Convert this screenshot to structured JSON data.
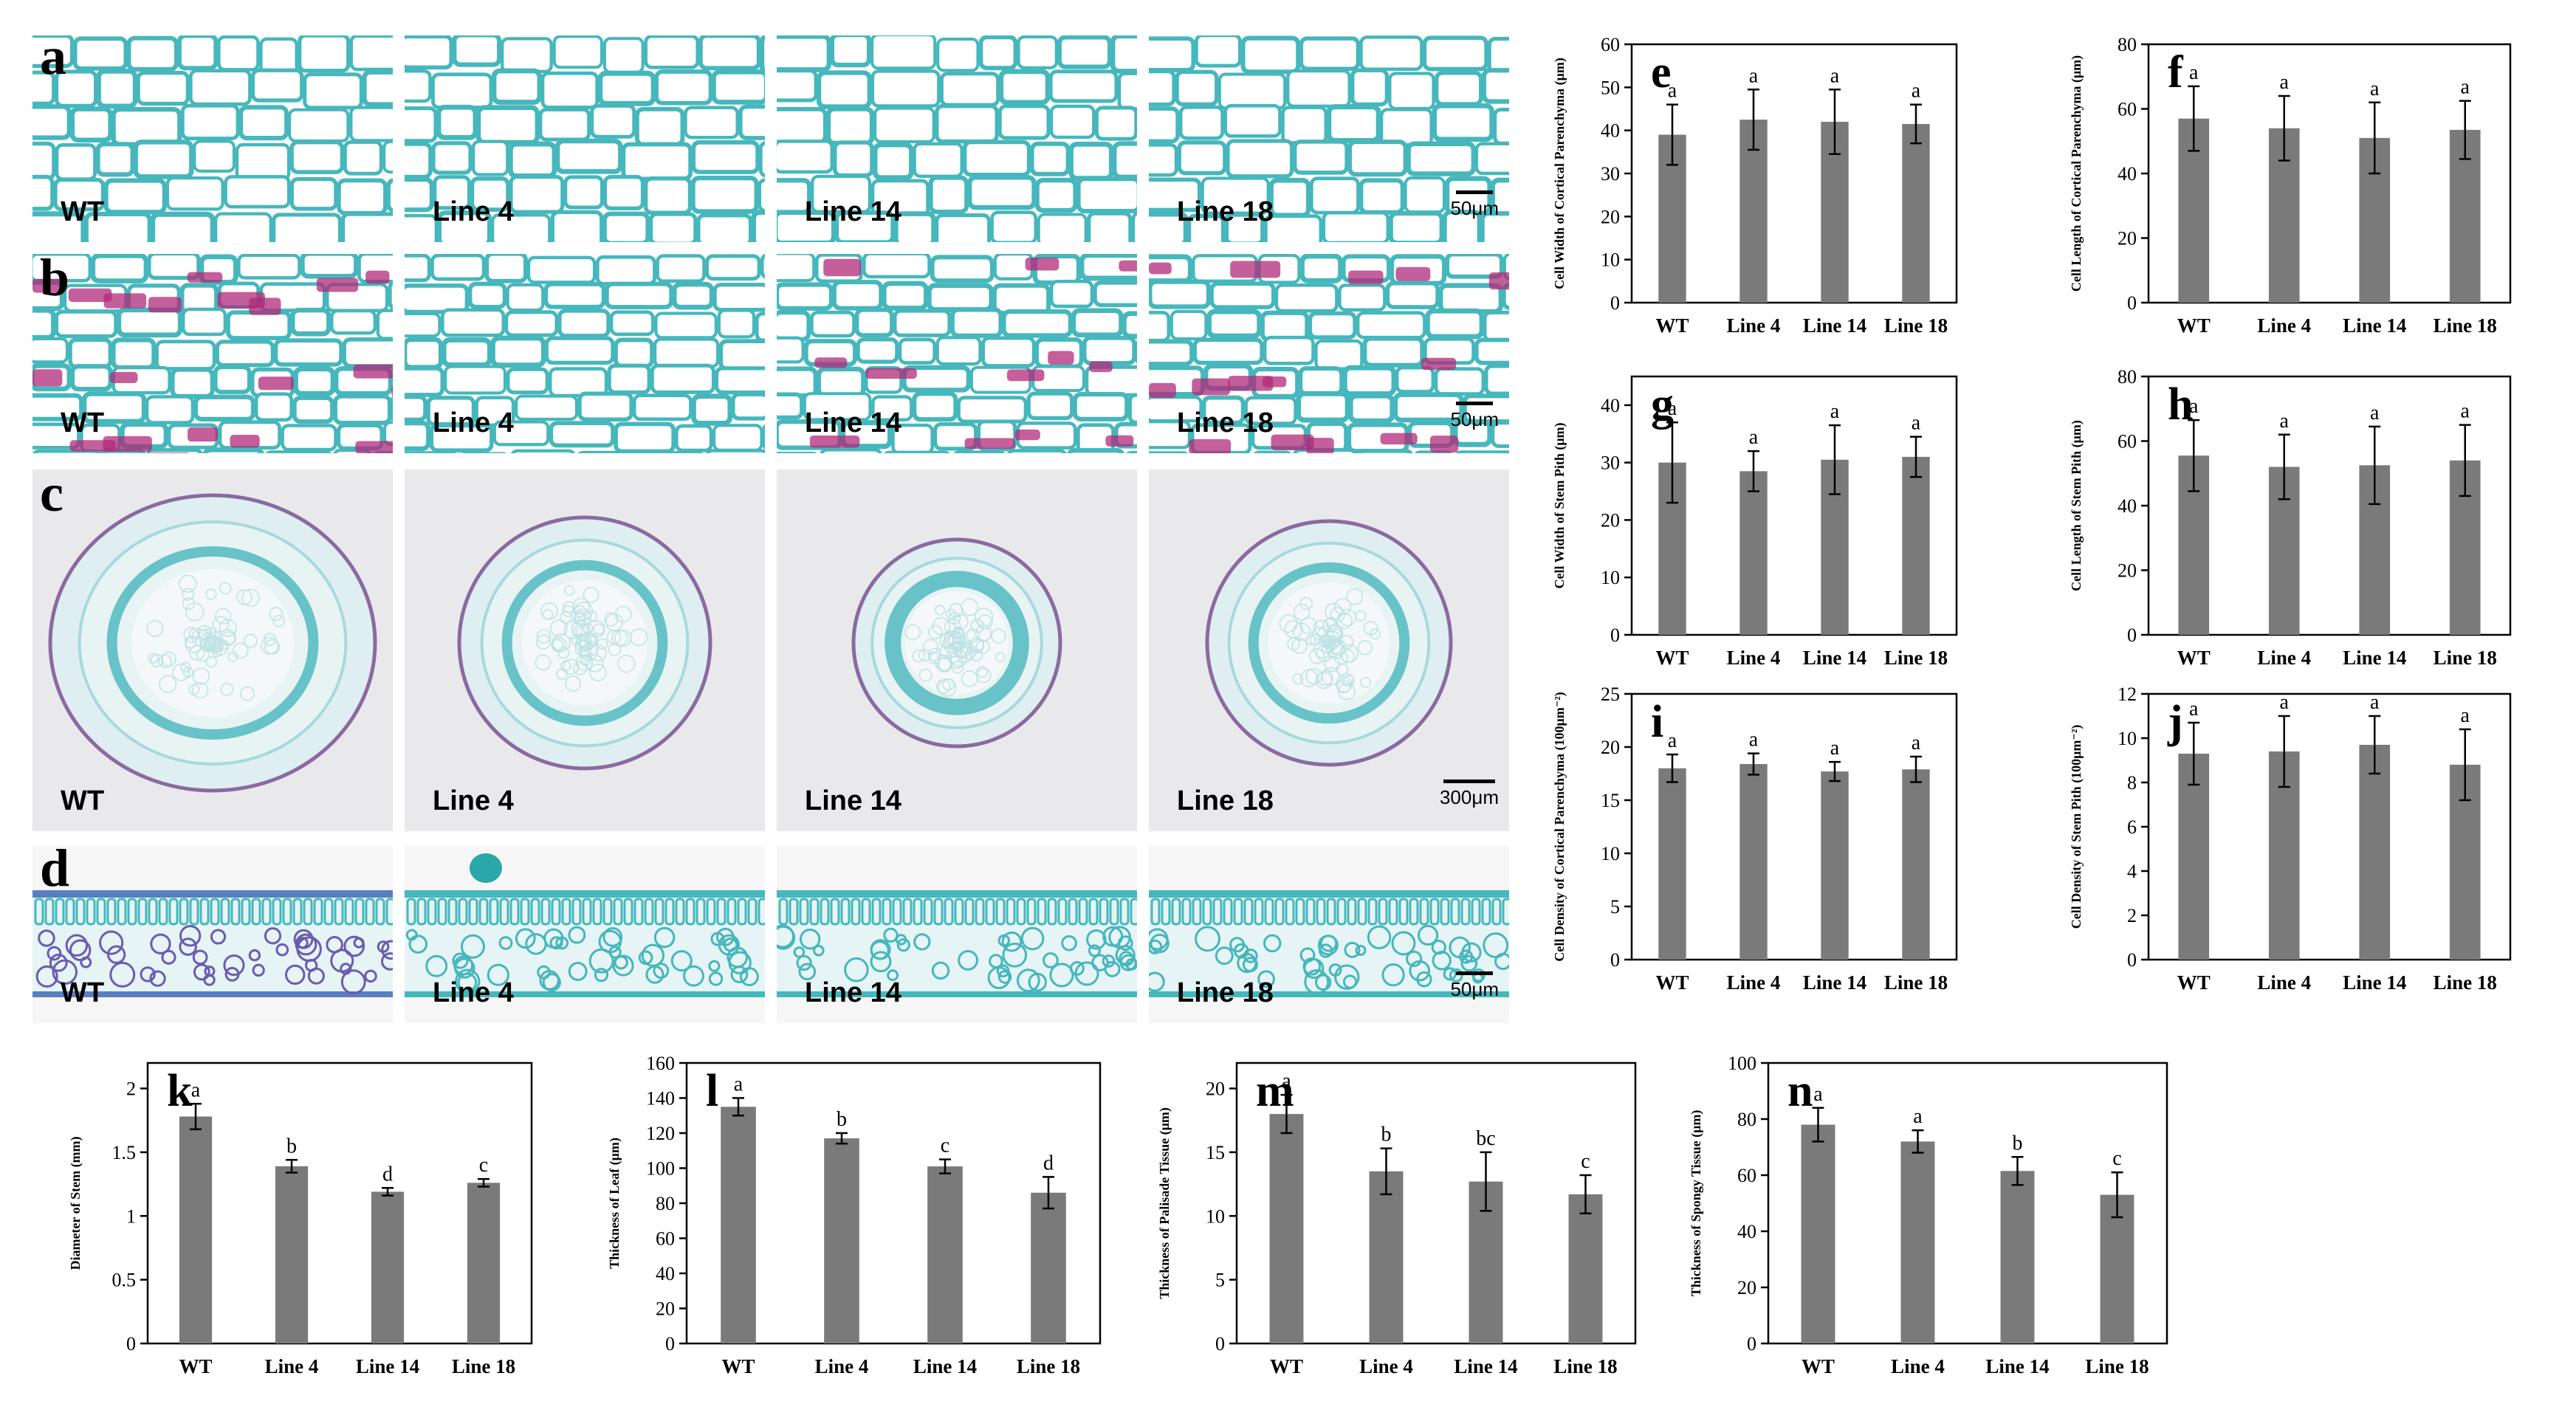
{
  "panel_labels": {
    "a": "a",
    "b": "b",
    "c": "c",
    "d": "d"
  },
  "micrographs": {
    "lines": [
      "WT",
      "Line 4",
      "Line 14",
      "Line 18"
    ],
    "rows": [
      {
        "id": "a",
        "type": "cells",
        "scale_label": "50μm"
      },
      {
        "id": "b",
        "type": "cells-red",
        "scale_label": "50μm"
      },
      {
        "id": "c",
        "type": "cross-section",
        "scale_label": "300μm"
      },
      {
        "id": "d",
        "type": "leaf",
        "scale_label": "50μm"
      }
    ],
    "colors": {
      "tissue": "#46b7bc",
      "stain": "#b02a7a",
      "cross_bg": "#e9e9ec",
      "cell_bg": "#fbfbfb"
    }
  },
  "chart_data": [
    {
      "id": "e",
      "type": "bar",
      "categories": [
        "WT",
        "Line 4",
        "Line 14",
        "Line 18"
      ],
      "values": [
        39,
        42.5,
        42,
        41.5
      ],
      "errors": [
        7,
        7,
        7.5,
        4.5
      ],
      "letters": [
        "a",
        "a",
        "a",
        "a"
      ],
      "ylabel": "Cell Width of Cortical Parenchyma (μm)",
      "ylim": [
        0,
        60
      ],
      "yticks": [
        0,
        10,
        20,
        30,
        40,
        50,
        60
      ]
    },
    {
      "id": "f",
      "type": "bar",
      "categories": [
        "WT",
        "Line 4",
        "Line 14",
        "Line 18"
      ],
      "values": [
        57,
        54,
        51,
        53.5
      ],
      "errors": [
        10,
        10,
        11,
        9
      ],
      "letters": [
        "a",
        "a",
        "a",
        "a"
      ],
      "ylabel": "Cell Length of Cortical Parenchyma (μm)",
      "ylim": [
        0,
        80
      ],
      "yticks": [
        0,
        20,
        40,
        60,
        80
      ]
    },
    {
      "id": "g",
      "type": "bar",
      "categories": [
        "WT",
        "Line 4",
        "Line 14",
        "Line 18"
      ],
      "values": [
        30,
        28.5,
        30.5,
        31
      ],
      "errors": [
        7,
        3.5,
        6,
        3.5
      ],
      "letters": [
        "a",
        "a",
        "a",
        "a"
      ],
      "ylabel": "Cell Width of Stem Pith (μm)",
      "ylim": [
        0,
        45
      ],
      "yticks": [
        0,
        10,
        20,
        30,
        40
      ]
    },
    {
      "id": "h",
      "type": "bar",
      "categories": [
        "WT",
        "Line 4",
        "Line 14",
        "Line 18"
      ],
      "values": [
        55.5,
        52,
        52.5,
        54
      ],
      "errors": [
        11,
        10,
        12,
        11
      ],
      "letters": [
        "a",
        "a",
        "a",
        "a"
      ],
      "ylabel": "Cell Length of Stem Pith (μm)",
      "ylim": [
        0,
        80
      ],
      "yticks": [
        0,
        20,
        40,
        60,
        80
      ]
    },
    {
      "id": "i",
      "type": "bar",
      "categories": [
        "WT",
        "Line 4",
        "Line 14",
        "Line 18"
      ],
      "values": [
        18,
        18.4,
        17.7,
        17.9
      ],
      "errors": [
        1.3,
        1,
        0.9,
        1.2
      ],
      "letters": [
        "a",
        "a",
        "a",
        "a"
      ],
      "ylabel": "Cell Density of Cortical Parenchyma (100μm⁻²)",
      "ylim": [
        0,
        25
      ],
      "yticks": [
        0,
        5,
        10,
        15,
        20,
        25
      ]
    },
    {
      "id": "j",
      "type": "bar",
      "categories": [
        "WT",
        "Line 4",
        "Line 14",
        "Line 18"
      ],
      "values": [
        9.3,
        9.4,
        9.7,
        8.8
      ],
      "errors": [
        1.4,
        1.6,
        1.3,
        1.6
      ],
      "letters": [
        "a",
        "a",
        "a",
        "a"
      ],
      "ylabel": "Cell Density of Stem Pith (100μm⁻²)",
      "ylim": [
        0,
        12
      ],
      "yticks": [
        0,
        2,
        4,
        6,
        8,
        10,
        12
      ]
    },
    {
      "id": "k",
      "type": "bar",
      "categories": [
        "WT",
        "Line 4",
        "Line 14",
        "Line 18"
      ],
      "values": [
        1.78,
        1.39,
        1.19,
        1.26
      ],
      "errors": [
        0.1,
        0.05,
        0.03,
        0.03
      ],
      "letters": [
        "a",
        "b",
        "d",
        "c"
      ],
      "ylabel": "Diameter of Stem (mm)",
      "ylim": [
        0,
        2.2
      ],
      "yticks": [
        0,
        0.5,
        1,
        1.5,
        2
      ]
    },
    {
      "id": "l",
      "type": "bar",
      "categories": [
        "WT",
        "Line 4",
        "Line 14",
        "Line 18"
      ],
      "values": [
        135,
        117,
        101,
        86
      ],
      "errors": [
        5,
        3,
        4,
        9
      ],
      "letters": [
        "a",
        "b",
        "c",
        "d"
      ],
      "ylabel": "Thickness of Leaf (μm)",
      "ylim": [
        0,
        160
      ],
      "yticks": [
        0,
        20,
        40,
        60,
        80,
        100,
        120,
        140,
        160
      ]
    },
    {
      "id": "m",
      "type": "bar",
      "categories": [
        "WT",
        "Line 4",
        "Line 14",
        "Line 18"
      ],
      "values": [
        18,
        13.5,
        12.7,
        11.7
      ],
      "errors": [
        1.5,
        1.8,
        2.3,
        1.5
      ],
      "letters": [
        "a",
        "b",
        "bc",
        "c"
      ],
      "ylabel": "Thickness of Palisade Tissue (μm)",
      "ylim": [
        0,
        22
      ],
      "yticks": [
        0,
        5,
        10,
        15,
        20
      ]
    },
    {
      "id": "n",
      "type": "bar",
      "categories": [
        "WT",
        "Line 4",
        "Line 14",
        "Line 18"
      ],
      "values": [
        78,
        72,
        61.5,
        53
      ],
      "errors": [
        6,
        4,
        5,
        8
      ],
      "letters": [
        "a",
        "a",
        "b",
        "c"
      ],
      "ylabel": "Thickness of Spongy Tissue (μm)",
      "ylim": [
        0,
        100
      ],
      "yticks": [
        0,
        20,
        40,
        60,
        80,
        100
      ]
    }
  ]
}
